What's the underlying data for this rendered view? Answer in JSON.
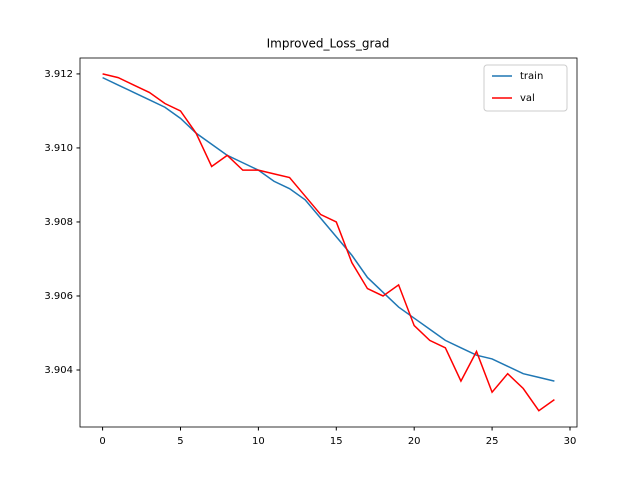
{
  "chart_data": {
    "type": "line",
    "title": "Improved_Loss_grad",
    "x": [
      0,
      1,
      2,
      3,
      4,
      5,
      6,
      7,
      8,
      9,
      10,
      11,
      12,
      13,
      14,
      15,
      16,
      17,
      18,
      19,
      20,
      21,
      22,
      23,
      24,
      25,
      26,
      27,
      28,
      29
    ],
    "series": [
      {
        "name": "train",
        "color": "#1f77b4",
        "values": [
          3.9119,
          3.9117,
          3.9115,
          3.9113,
          3.9111,
          3.9108,
          3.9104,
          3.9101,
          3.9098,
          3.9096,
          3.9094,
          3.9091,
          3.9089,
          3.9086,
          3.9081,
          3.9076,
          3.9071,
          3.9065,
          3.9061,
          3.9057,
          3.9054,
          3.9051,
          3.9048,
          3.9046,
          3.9044,
          3.9043,
          3.9041,
          3.9039,
          3.9038,
          3.9037
        ]
      },
      {
        "name": "val",
        "color": "#ff0000",
        "values": [
          3.912,
          3.9119,
          3.9117,
          3.9115,
          3.9112,
          3.911,
          3.9104,
          3.9095,
          3.9098,
          3.9094,
          3.9094,
          3.9093,
          3.9092,
          3.9087,
          3.9082,
          3.908,
          3.9069,
          3.9062,
          3.906,
          3.9063,
          3.9052,
          3.9048,
          3.9046,
          3.9037,
          3.9045,
          3.9034,
          3.9039,
          3.9035,
          3.9029,
          3.9032
        ]
      }
    ],
    "xlim": [
      -1.45,
      30.45
    ],
    "xticks": [
      0,
      5,
      10,
      15,
      20,
      25,
      30
    ],
    "ylim": [
      3.90246,
      3.91243
    ],
    "yticks": [
      3.904,
      3.906,
      3.908,
      {
        "value": 3.91,
        "label": "3.910"
      },
      3.912
    ],
    "legend": "upper right"
  }
}
